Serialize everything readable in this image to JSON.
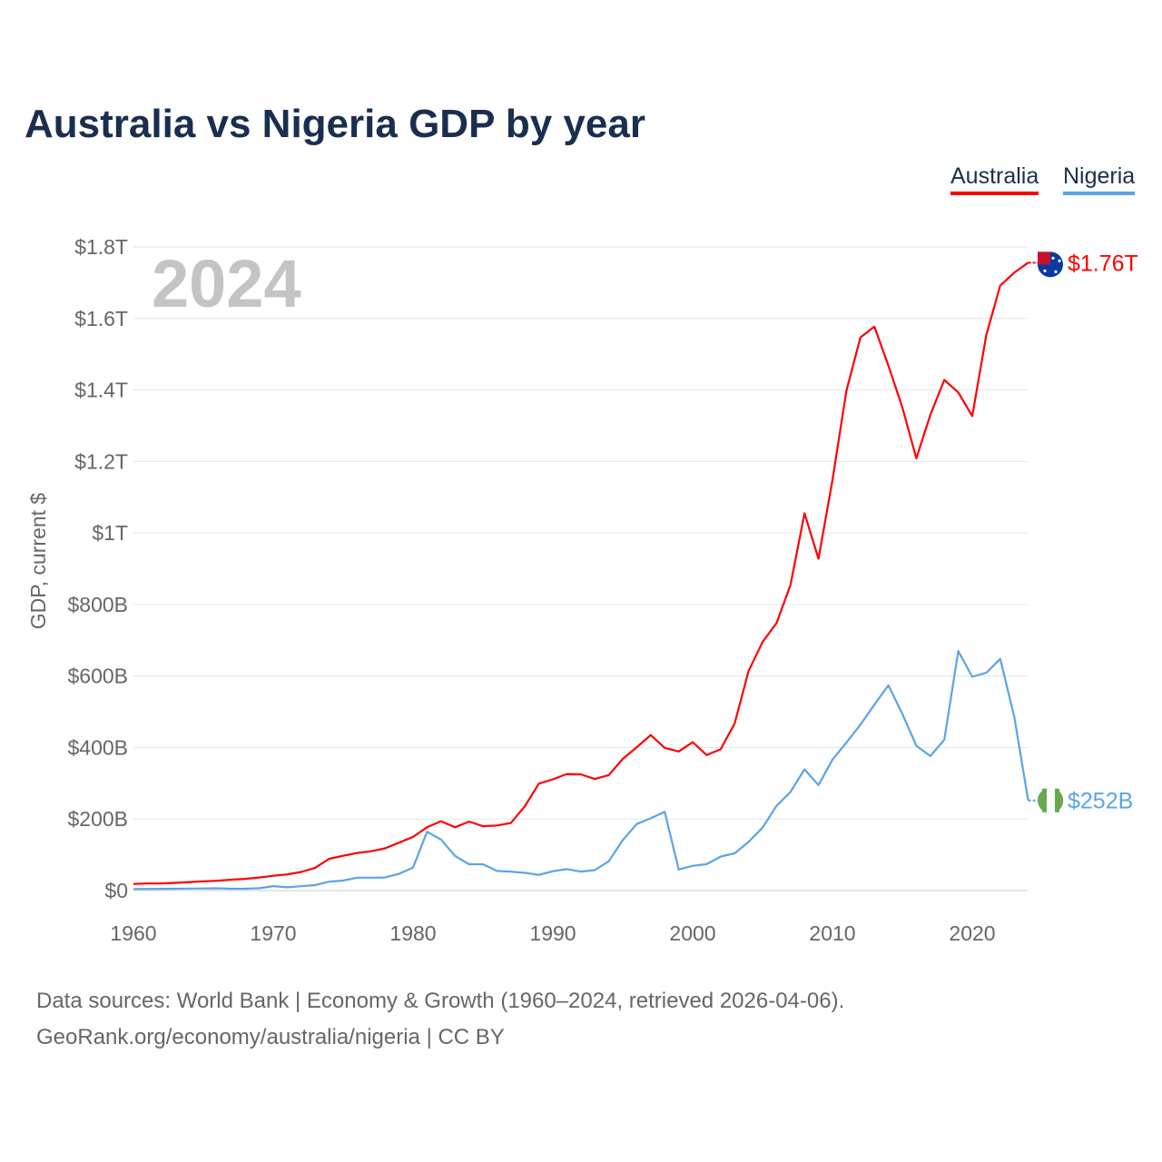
{
  "title": "Australia vs Nigeria GDP by year",
  "legend": [
    "Australia",
    "Nigeria"
  ],
  "source_line1": "Data sources: World Bank | Economy & Growth (1960–2024, retrieved 2026-04-06).",
  "source_line2": "GeoRank.org/economy/australia/nigeria | CC BY",
  "chart_data": {
    "type": "line",
    "title": "Australia vs Nigeria GDP by year",
    "ylabel": "GDP, current $",
    "xlabel": "",
    "year_label": "2024",
    "xlim": [
      1960,
      2024
    ],
    "ylim": [
      0,
      1800
    ],
    "y_unit": "billions USD",
    "x_ticks": [
      1960,
      1970,
      1980,
      1990,
      2000,
      2010,
      2020
    ],
    "y_ticks": [
      {
        "v": 0,
        "l": "$0"
      },
      {
        "v": 200,
        "l": "$200B"
      },
      {
        "v": 400,
        "l": "$400B"
      },
      {
        "v": 600,
        "l": "$600B"
      },
      {
        "v": 800,
        "l": "$800B"
      },
      {
        "v": 1000,
        "l": "$1T"
      },
      {
        "v": 1200,
        "l": "$1.2T"
      },
      {
        "v": 1400,
        "l": "$1.4T"
      },
      {
        "v": 1600,
        "l": "$1.6T"
      },
      {
        "v": 1800,
        "l": "$1.8T"
      }
    ],
    "grid": true,
    "legend_position": "top-right",
    "series": [
      {
        "name": "Australia",
        "color": "#ff0000",
        "end_label": "$1.76T",
        "values": [
          18.6,
          19.7,
          20,
          21.5,
          23.8,
          25.9,
          27.3,
          30.4,
          32.7,
          36.6,
          41.3,
          45.1,
          52,
          63.7,
          88.8,
          97.2,
          105,
          110,
          118,
          134,
          150,
          177,
          194,
          177,
          193,
          180,
          182,
          189,
          236,
          299,
          311,
          326,
          325,
          312,
          323,
          368,
          401,
          435,
          399,
          389,
          415,
          379,
          395,
          467,
          614,
          695,
          748,
          855,
          1055,
          928,
          1148,
          1398,
          1547,
          1577,
          1468,
          1351,
          1209,
          1330,
          1428,
          1393,
          1327,
          1553,
          1692,
          1728,
          1756
        ]
      },
      {
        "name": "Nigeria",
        "color": "#5ba3e8",
        "end_label": "$252B",
        "values": [
          4.2,
          4.5,
          4.9,
          5.2,
          5.5,
          5.9,
          6.4,
          5.2,
          5.2,
          6.6,
          12.5,
          9.2,
          12.3,
          15.2,
          24.8,
          27.8,
          36,
          36,
          36.5,
          47,
          64.2,
          164.5,
          142.8,
          97.1,
          73.5,
          73.7,
          54.8,
          52.7,
          49.6,
          44,
          54,
          60,
          53,
          57,
          82,
          141,
          186,
          202,
          220,
          59,
          69,
          74,
          95,
          104,
          136,
          176,
          237,
          276,
          339,
          295,
          366,
          414,
          464,
          520,
          574,
          494,
          405,
          376,
          422,
          670,
          598,
          609,
          648,
          487,
          252
        ]
      }
    ]
  }
}
